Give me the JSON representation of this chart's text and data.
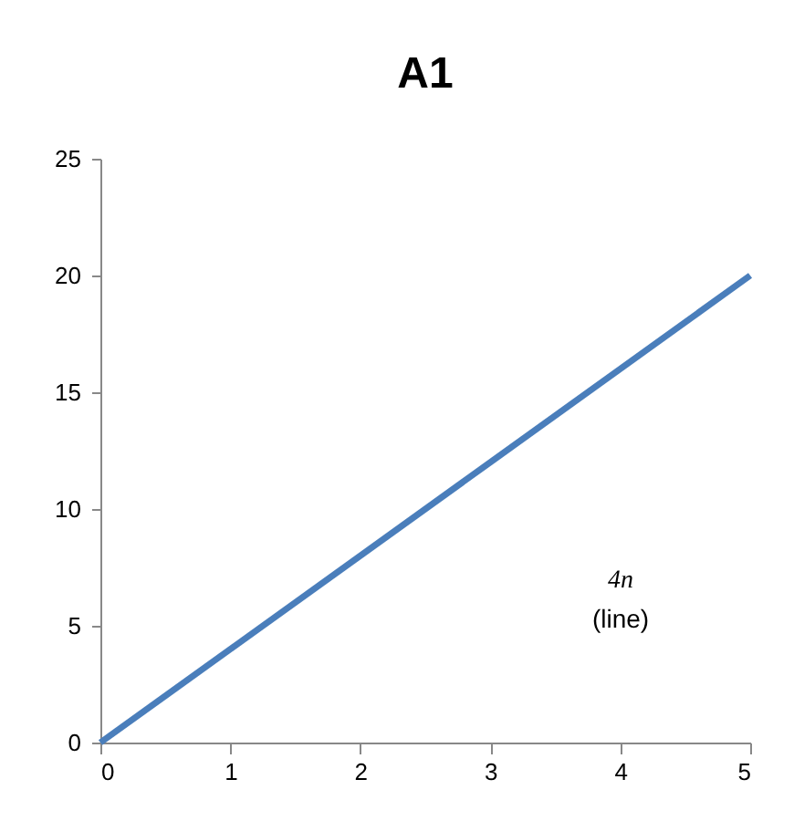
{
  "chart_data": {
    "type": "line",
    "title": "A1",
    "x": [
      0,
      5
    ],
    "series": [
      {
        "color": "#4a7ebb",
        "values": [
          0,
          20
        ]
      }
    ],
    "xlim": [
      0,
      5
    ],
    "xticks": [
      0,
      1,
      2,
      3,
      4,
      5
    ],
    "ylim": [
      0,
      25
    ],
    "yticks": [
      0,
      5,
      10,
      15,
      20,
      25
    ],
    "grid": false,
    "legend": false,
    "marker": "none",
    "line_style": "solid",
    "annotations": [
      "4n",
      "(line)"
    ]
  }
}
